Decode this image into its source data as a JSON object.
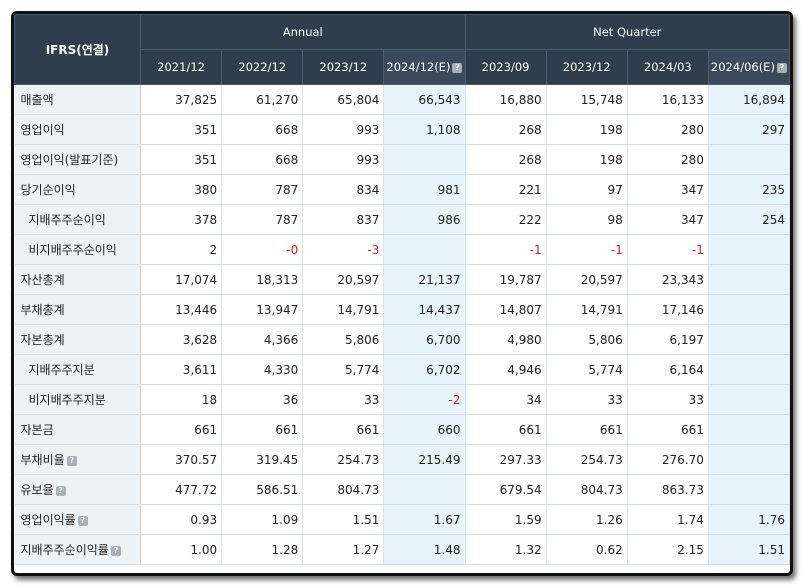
{
  "table": {
    "corner_label": "IFRS(연결)",
    "groups": [
      {
        "label": "Annual",
        "span": 4
      },
      {
        "label": "Net Quarter",
        "span": 4
      }
    ],
    "columns": [
      {
        "label": "2021/12",
        "estimate": false,
        "help": false
      },
      {
        "label": "2022/12",
        "estimate": false,
        "help": false
      },
      {
        "label": "2023/12",
        "estimate": false,
        "help": false
      },
      {
        "label": "2024/12(E)",
        "estimate": true,
        "help": true
      },
      {
        "label": "2023/09",
        "estimate": false,
        "help": false
      },
      {
        "label": "2023/12",
        "estimate": false,
        "help": false
      },
      {
        "label": "2024/03",
        "estimate": false,
        "help": false
      },
      {
        "label": "2024/06(E)",
        "estimate": true,
        "help": true
      }
    ],
    "rows": [
      {
        "label": "매출액",
        "indent": false,
        "help": false,
        "values": [
          "37,825",
          "61,270",
          "65,804",
          "66,543",
          "16,880",
          "15,748",
          "16,133",
          "16,894"
        ]
      },
      {
        "label": "영업이익",
        "indent": false,
        "help": false,
        "values": [
          "351",
          "668",
          "993",
          "1,108",
          "268",
          "198",
          "280",
          "297"
        ]
      },
      {
        "label": "영업이익(발표기준)",
        "indent": false,
        "help": false,
        "values": [
          "351",
          "668",
          "993",
          "",
          "268",
          "198",
          "280",
          ""
        ]
      },
      {
        "label": "당기순이익",
        "indent": false,
        "help": false,
        "values": [
          "380",
          "787",
          "834",
          "981",
          "221",
          "97",
          "347",
          "235"
        ]
      },
      {
        "label": "지배주주순이익",
        "indent": true,
        "help": false,
        "values": [
          "378",
          "787",
          "837",
          "986",
          "222",
          "98",
          "347",
          "254"
        ]
      },
      {
        "label": "비지배주주순이익",
        "indent": true,
        "help": false,
        "values": [
          "2",
          "-0",
          "-3",
          "",
          "-1",
          "-1",
          "-1",
          ""
        ]
      },
      {
        "label": "자산총계",
        "indent": false,
        "help": false,
        "values": [
          "17,074",
          "18,313",
          "20,597",
          "21,137",
          "19,787",
          "20,597",
          "23,343",
          ""
        ]
      },
      {
        "label": "부채총계",
        "indent": false,
        "help": false,
        "values": [
          "13,446",
          "13,947",
          "14,791",
          "14,437",
          "14,807",
          "14,791",
          "17,146",
          ""
        ]
      },
      {
        "label": "자본총계",
        "indent": false,
        "help": false,
        "values": [
          "3,628",
          "4,366",
          "5,806",
          "6,700",
          "4,980",
          "5,806",
          "6,197",
          ""
        ]
      },
      {
        "label": "지배주주지분",
        "indent": true,
        "help": false,
        "values": [
          "3,611",
          "4,330",
          "5,774",
          "6,702",
          "4,946",
          "5,774",
          "6,164",
          ""
        ]
      },
      {
        "label": "비지배주주지분",
        "indent": true,
        "help": false,
        "values": [
          "18",
          "36",
          "33",
          "-2",
          "34",
          "33",
          "33",
          ""
        ]
      },
      {
        "label": "자본금",
        "indent": false,
        "help": false,
        "values": [
          "661",
          "661",
          "661",
          "660",
          "661",
          "661",
          "661",
          ""
        ]
      },
      {
        "label": "부채비율",
        "indent": false,
        "help": true,
        "values": [
          "370.57",
          "319.45",
          "254.73",
          "215.49",
          "297.33",
          "254.73",
          "276.70",
          ""
        ]
      },
      {
        "label": "유보율",
        "indent": false,
        "help": true,
        "values": [
          "477.72",
          "586.51",
          "804.73",
          "",
          "679.54",
          "804.73",
          "863.73",
          ""
        ]
      },
      {
        "label": "영업이익률",
        "indent": false,
        "help": true,
        "values": [
          "0.93",
          "1.09",
          "1.51",
          "1.67",
          "1.59",
          "1.26",
          "1.74",
          "1.76"
        ]
      },
      {
        "label": "지배주주순이익률",
        "indent": false,
        "help": true,
        "values": [
          "1.00",
          "1.28",
          "1.27",
          "1.48",
          "1.32",
          "0.62",
          "2.15",
          "1.51"
        ]
      }
    ]
  },
  "colors": {
    "header_bg": "#2f3e4d",
    "label_bg": "#edf2f7",
    "estimate_bg": "#e7f4fa",
    "negative": "#d42020"
  },
  "icons": {
    "help": "question-icon"
  }
}
